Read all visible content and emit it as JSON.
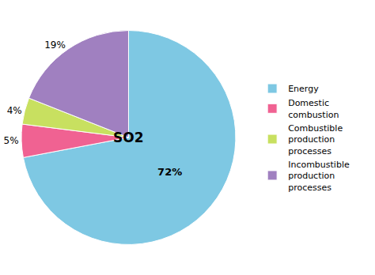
{
  "chart_data": {
    "type": "pie",
    "categories": [
      "Energy",
      "Domestic\ncombustion",
      "Combustible\nproduction\nprocesses",
      "Incombustible\nproduction\nprocesses"
    ],
    "values": [
      72,
      5,
      4,
      19
    ],
    "value_labels": [
      "72%",
      "5%",
      "4%",
      "19%"
    ],
    "colors": [
      "#7EC8E3",
      "#F06292",
      "#C8E060",
      "#A080C0"
    ],
    "annotations": [
      "SO2"
    ],
    "data_labels": true,
    "legend": "right"
  }
}
